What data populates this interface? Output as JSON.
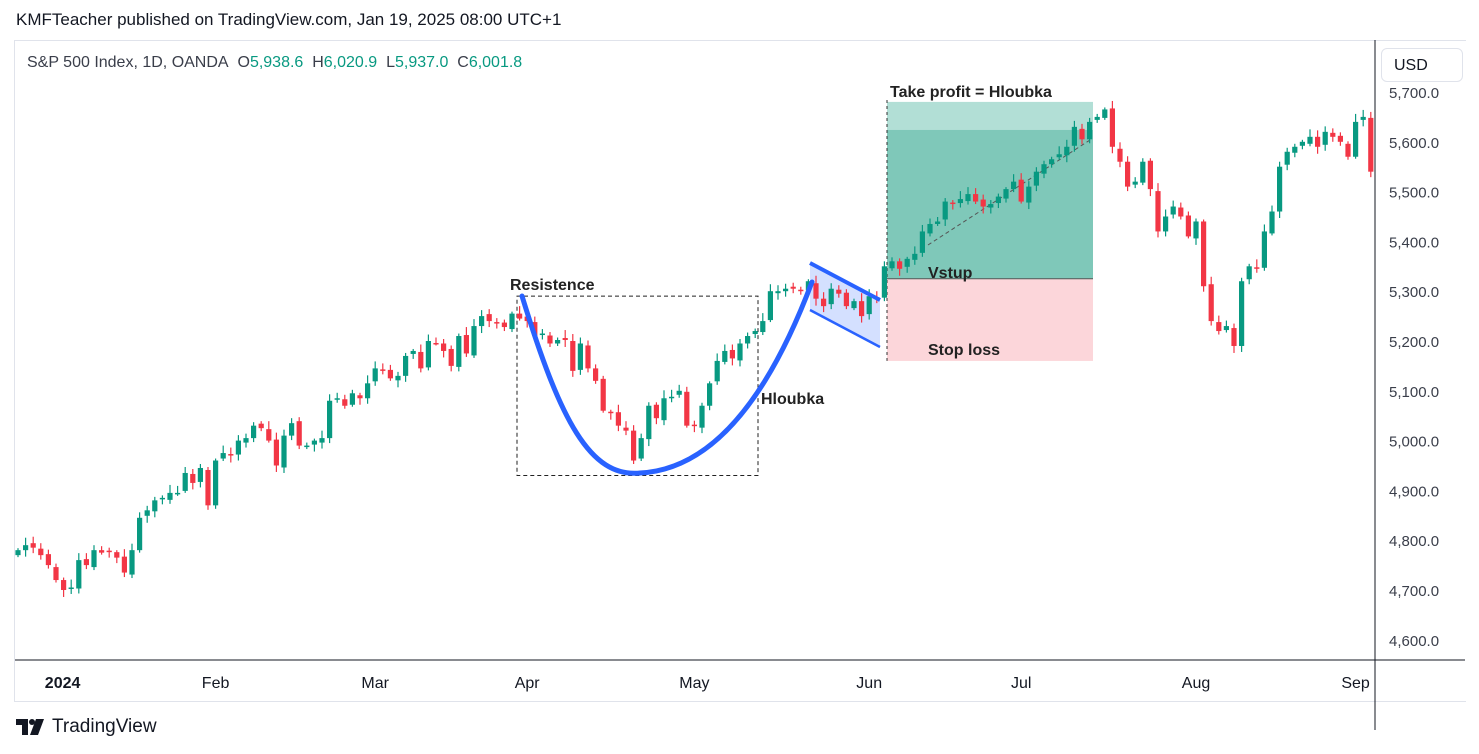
{
  "header": {
    "published": "KMFTeacher published on TradingView.com, Jan 19, 2025 08:00 UTC+1"
  },
  "legend": {
    "symbol": "S&P 500 Index, 1D, OANDA",
    "o_label": "O",
    "o": "5,938.6",
    "h_label": "H",
    "h": "6,020.9",
    "l_label": "L",
    "l": "5,937.0",
    "c_label": "C",
    "c": "6,001.8"
  },
  "currency": "USD",
  "footer": {
    "brand": "TradingView"
  },
  "colors": {
    "up": "#089981",
    "down": "#f23645",
    "curve": "#2962ff",
    "profit": "#7fc8b9",
    "loss": "#fcd6da"
  },
  "chart_data": {
    "type": "candlestick",
    "title": "S&P 500 Index, 1D, OANDA",
    "ylim": [
      4550,
      5760
    ],
    "y_ticks": [
      "5,700.0",
      "5,600.0",
      "5,500.0",
      "5,400.0",
      "5,300.0",
      "5,200.0",
      "5,100.0",
      "5,000.0",
      "4,900.0",
      "4,800.0",
      "4,700.0",
      "4,600.0"
    ],
    "y_tick_values": [
      5700,
      5600,
      5500,
      5400,
      5300,
      5200,
      5100,
      5000,
      4900,
      4800,
      4700,
      4600
    ],
    "x_ticks": [
      {
        "label": "2024",
        "index": 3
      },
      {
        "label": "Feb",
        "index": 26
      },
      {
        "label": "Mar",
        "index": 47
      },
      {
        "label": "Apr",
        "index": 67
      },
      {
        "label": "May",
        "index": 89
      },
      {
        "label": "Jun",
        "index": 112
      },
      {
        "label": "Jul",
        "index": 132
      },
      {
        "label": "Aug",
        "index": 155
      },
      {
        "label": "Sep",
        "index": 176
      }
    ],
    "closes": [
      4780,
      4790,
      4785,
      4770,
      4750,
      4720,
      4700,
      4705,
      4760,
      4750,
      4780,
      4775,
      4778,
      4765,
      4735,
      4780,
      4845,
      4860,
      4880,
      4885,
      4895,
      4895,
      4935,
      4915,
      4945,
      4870,
      4960,
      4975,
      4970,
      5000,
      5005,
      5030,
      5025,
      5000,
      4950,
      5010,
      5035,
      4990,
      4990,
      5000,
      5005,
      5080,
      5085,
      5070,
      5095,
      5085,
      5115,
      5145,
      5140,
      5125,
      5130,
      5170,
      5180,
      5145,
      5200,
      5195,
      5180,
      5150,
      5210,
      5175,
      5230,
      5250,
      5240,
      5235,
      5228,
      5255,
      5245,
      5240,
      5210,
      5215,
      5195,
      5202,
      5202,
      5140,
      5195,
      5145,
      5120,
      5060,
      5055,
      5030,
      5020,
      4960,
      5005,
      5070,
      5045,
      5085,
      5088,
      5100,
      5030,
      5030,
      5070,
      5115,
      5160,
      5180,
      5165,
      5195,
      5210,
      5220,
      5240,
      5300,
      5300,
      5305,
      5305,
      5300,
      5320,
      5285,
      5270,
      5305,
      5295,
      5270,
      5280,
      5250,
      5290,
      5285,
      5350,
      5360,
      5345,
      5365,
      5375,
      5420,
      5435,
      5440,
      5480,
      5475,
      5485,
      5495,
      5480,
      5470,
      5475,
      5490,
      5505,
      5520,
      5480,
      5510,
      5540,
      5555,
      5565,
      5575,
      5590,
      5630,
      5605,
      5640,
      5650,
      5665,
      5590,
      5560,
      5510,
      5520,
      5560,
      5505,
      5420,
      5450,
      5470,
      5450,
      5410,
      5440,
      5310,
      5240,
      5220,
      5230,
      5190,
      5320,
      5350,
      5345,
      5420,
      5460,
      5550,
      5580,
      5590,
      5600,
      5610,
      5590,
      5620,
      5610,
      5600,
      5570,
      5640,
      5650,
      5540
    ],
    "annotations": {
      "resistance_label": "Resistence",
      "depth_label": "Hloubka",
      "take_profit_label": "Take profit = Hloubka",
      "entry_label": "Vstup",
      "stop_loss_label": "Stop loss",
      "resistance_price": 5290,
      "cup_low_price": 4930,
      "entry_price": 5325,
      "take_profit_price": 5680,
      "stop_loss_price": 5160
    }
  }
}
